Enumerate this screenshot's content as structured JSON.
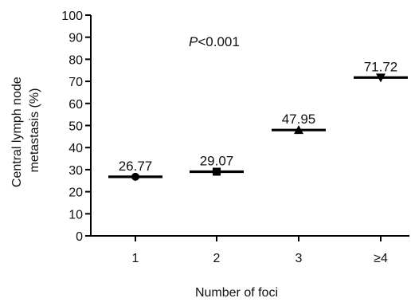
{
  "chart_data": {
    "type": "scatter",
    "title": "",
    "annotation": {
      "italic": "P",
      "rest": "<0.001"
    },
    "xlabel": "Number of foci",
    "ylabel": "Central lymph node metastasis (%)",
    "ylabel_lines": [
      "Central lymph node",
      "metastasis (%)"
    ],
    "categories": [
      "1",
      "2",
      "3",
      "≥4"
    ],
    "values": [
      26.77,
      29.07,
      47.95,
      71.72
    ],
    "value_labels": [
      "26.77",
      "29.07",
      "47.95",
      "71.72"
    ],
    "markers": [
      "circle",
      "square",
      "triangle-up",
      "triangle-down"
    ],
    "ylim": [
      0,
      100
    ],
    "yticks": [
      0,
      10,
      20,
      30,
      40,
      50,
      60,
      70,
      80,
      90,
      100
    ],
    "grid": false,
    "color": "#000000"
  }
}
